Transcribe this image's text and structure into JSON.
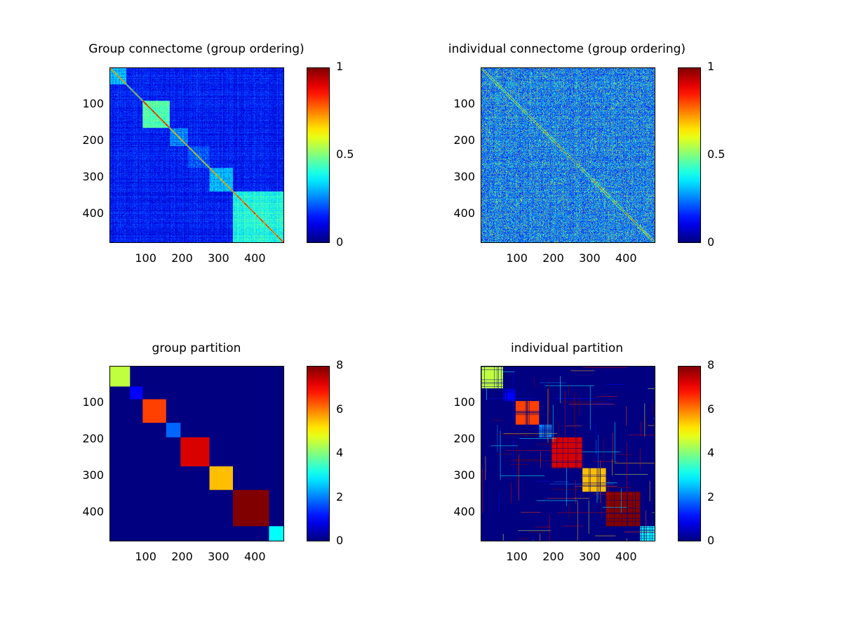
{
  "chart_data": [
    {
      "type": "heatmap",
      "title": "Group connectome (group ordering)",
      "matrix_size": 480,
      "xticks": [
        100,
        200,
        300,
        400
      ],
      "yticks": [
        100,
        200,
        300,
        400
      ],
      "colormap": "jet",
      "clim": [
        0,
        1
      ],
      "colorbar_ticks": [
        "0",
        "0.5",
        "1"
      ],
      "diagonal_value": 1,
      "blocks": [
        {
          "start": 1,
          "end": 45,
          "mean": 0.3
        },
        {
          "start": 46,
          "end": 90,
          "mean": 0.15
        },
        {
          "start": 91,
          "end": 165,
          "mean": 0.45
        },
        {
          "start": 166,
          "end": 215,
          "mean": 0.25
        },
        {
          "start": 216,
          "end": 275,
          "mean": 0.2
        },
        {
          "start": 276,
          "end": 340,
          "mean": 0.3
        },
        {
          "start": 341,
          "end": 480,
          "mean": 0.4
        }
      ]
    },
    {
      "type": "heatmap",
      "title": "individual connectome (group ordering)",
      "matrix_size": 480,
      "xticks": [
        100,
        200,
        300,
        400
      ],
      "yticks": [
        100,
        200,
        300,
        400
      ],
      "colormap": "jet",
      "clim": [
        0,
        1
      ],
      "colorbar_ticks": [
        "0",
        "0.5",
        "1"
      ],
      "diagonal_value": 1
    },
    {
      "type": "heatmap",
      "title": "group partition",
      "matrix_size": 480,
      "xticks": [
        100,
        200,
        300,
        400
      ],
      "yticks": [
        100,
        200,
        300,
        400
      ],
      "colormap": "jet",
      "clim": [
        0,
        8
      ],
      "colorbar_ticks": [
        "0",
        "2",
        "4",
        "6",
        "8"
      ],
      "background_value": 0,
      "blocks": [
        {
          "start": 1,
          "end": 55,
          "value": 4.5
        },
        {
          "start": 56,
          "end": 90,
          "value": 1
        },
        {
          "start": 91,
          "end": 155,
          "value": 6.5
        },
        {
          "start": 156,
          "end": 195,
          "value": 1.8
        },
        {
          "start": 196,
          "end": 275,
          "value": 7.3
        },
        {
          "start": 276,
          "end": 340,
          "value": 5.5
        },
        {
          "start": 341,
          "end": 440,
          "value": 8
        },
        {
          "start": 441,
          "end": 480,
          "value": 3
        }
      ]
    },
    {
      "type": "heatmap",
      "title": "individual partition",
      "matrix_size": 480,
      "xticks": [
        100,
        200,
        300,
        400
      ],
      "yticks": [
        100,
        200,
        300,
        400
      ],
      "colormap": "jet",
      "clim": [
        0,
        8
      ],
      "colorbar_ticks": [
        "0",
        "2",
        "4",
        "6",
        "8"
      ],
      "background_value": 0,
      "blocks": [
        {
          "start": 1,
          "end": 60,
          "value": 4.5
        },
        {
          "start": 61,
          "end": 95,
          "value": 1
        },
        {
          "start": 96,
          "end": 160,
          "value": 6.5
        },
        {
          "start": 161,
          "end": 195,
          "value": 2
        },
        {
          "start": 196,
          "end": 280,
          "value": 7.3
        },
        {
          "start": 281,
          "end": 345,
          "value": 5.5
        },
        {
          "start": 346,
          "end": 440,
          "value": 8
        },
        {
          "start": 441,
          "end": 480,
          "value": 3
        }
      ]
    }
  ]
}
